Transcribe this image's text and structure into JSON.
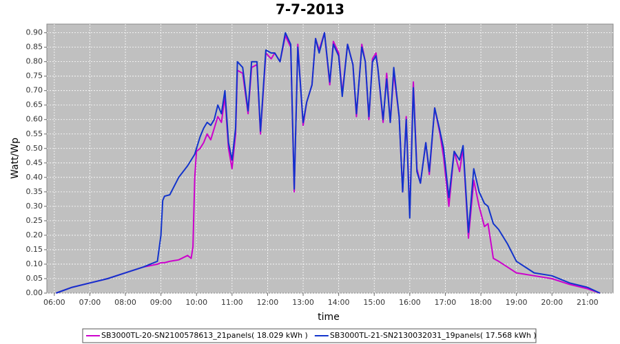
{
  "chart_data": {
    "type": "line",
    "title": "7-7-2013",
    "x_label": "time",
    "y_label": "Watt/Wp",
    "x": [
      6.05,
      6.5,
      7.0,
      7.5,
      8.0,
      8.5,
      8.9,
      9.0,
      9.05,
      9.1,
      9.25,
      9.5,
      9.75,
      9.85,
      9.9,
      9.95,
      10.0,
      10.1,
      10.2,
      10.3,
      10.4,
      10.5,
      10.6,
      10.7,
      10.8,
      10.9,
      11.0,
      11.1,
      11.15,
      11.3,
      11.45,
      11.55,
      11.7,
      11.8,
      11.95,
      12.1,
      12.2,
      12.35,
      12.5,
      12.65,
      12.75,
      12.85,
      13.0,
      13.1,
      13.25,
      13.35,
      13.45,
      13.6,
      13.75,
      13.85,
      14.0,
      14.1,
      14.25,
      14.4,
      14.5,
      14.65,
      14.75,
      14.85,
      14.95,
      15.05,
      15.1,
      15.25,
      15.35,
      15.45,
      15.55,
      15.7,
      15.8,
      15.9,
      16.0,
      16.1,
      16.2,
      16.3,
      16.45,
      16.55,
      16.7,
      16.85,
      16.95,
      17.1,
      17.25,
      17.4,
      17.5,
      17.65,
      17.8,
      17.95,
      18.1,
      18.2,
      18.35,
      18.5,
      18.75,
      19.0,
      19.5,
      20.0,
      20.5,
      21.0,
      21.35
    ],
    "series": [
      {
        "name": "SB3000TL-20-SN2100578613_21panels( 18.029 kWh )",
        "color": "#cc00cc",
        "values": [
          0.0,
          0.02,
          0.035,
          0.05,
          0.07,
          0.09,
          0.1,
          0.105,
          0.105,
          0.105,
          0.11,
          0.115,
          0.13,
          0.12,
          0.16,
          0.4,
          0.49,
          0.5,
          0.52,
          0.55,
          0.53,
          0.57,
          0.61,
          0.59,
          0.68,
          0.5,
          0.43,
          0.55,
          0.77,
          0.76,
          0.62,
          0.78,
          0.79,
          0.55,
          0.83,
          0.81,
          0.83,
          0.8,
          0.89,
          0.85,
          0.35,
          0.86,
          0.58,
          0.66,
          0.72,
          0.88,
          0.84,
          0.9,
          0.72,
          0.87,
          0.83,
          0.69,
          0.86,
          0.79,
          0.61,
          0.86,
          0.8,
          0.6,
          0.81,
          0.83,
          0.78,
          0.59,
          0.76,
          0.59,
          0.76,
          0.61,
          0.35,
          0.61,
          0.27,
          0.73,
          0.43,
          0.38,
          0.52,
          0.41,
          0.64,
          0.55,
          0.47,
          0.3,
          0.49,
          0.42,
          0.5,
          0.19,
          0.39,
          0.3,
          0.23,
          0.24,
          0.12,
          0.11,
          0.09,
          0.07,
          0.06,
          0.05,
          0.03,
          0.015,
          0.0
        ]
      },
      {
        "name": "SB3000TL-21-SN2130032031_19panels( 17.568 kWh )",
        "color": "#1133cc",
        "values": [
          0.0,
          0.02,
          0.035,
          0.05,
          0.07,
          0.09,
          0.11,
          0.2,
          0.32,
          0.335,
          0.34,
          0.4,
          0.44,
          0.46,
          0.47,
          0.48,
          0.5,
          0.54,
          0.57,
          0.59,
          0.58,
          0.6,
          0.65,
          0.62,
          0.7,
          0.52,
          0.46,
          0.57,
          0.8,
          0.78,
          0.63,
          0.8,
          0.8,
          0.56,
          0.84,
          0.83,
          0.83,
          0.8,
          0.9,
          0.86,
          0.36,
          0.85,
          0.59,
          0.66,
          0.72,
          0.88,
          0.83,
          0.9,
          0.73,
          0.86,
          0.82,
          0.68,
          0.86,
          0.79,
          0.62,
          0.85,
          0.8,
          0.61,
          0.8,
          0.82,
          0.78,
          0.6,
          0.74,
          0.59,
          0.78,
          0.61,
          0.35,
          0.6,
          0.26,
          0.71,
          0.42,
          0.38,
          0.52,
          0.42,
          0.64,
          0.56,
          0.5,
          0.33,
          0.49,
          0.46,
          0.51,
          0.21,
          0.43,
          0.35,
          0.31,
          0.3,
          0.24,
          0.22,
          0.17,
          0.11,
          0.07,
          0.06,
          0.035,
          0.02,
          0.0
        ]
      }
    ],
    "xlim": [
      5.79,
      21.72
    ],
    "xticks": [
      {
        "value": 6,
        "label": "06:00"
      },
      {
        "value": 7,
        "label": "07:00"
      },
      {
        "value": 8,
        "label": "08:00"
      },
      {
        "value": 9,
        "label": "09:00"
      },
      {
        "value": 10,
        "label": "10:00"
      },
      {
        "value": 11,
        "label": "11:00"
      },
      {
        "value": 12,
        "label": "12:00"
      },
      {
        "value": 13,
        "label": "13:00"
      },
      {
        "value": 14,
        "label": "14:00"
      },
      {
        "value": 15,
        "label": "15:00"
      },
      {
        "value": 16,
        "label": "16:00"
      },
      {
        "value": 17,
        "label": "17:00"
      },
      {
        "value": 18,
        "label": "18:00"
      },
      {
        "value": 19,
        "label": "19:00"
      },
      {
        "value": 20,
        "label": "20:00"
      },
      {
        "value": 21,
        "label": "21:00"
      }
    ],
    "ylim": [
      0,
      0.93
    ],
    "yticks": [
      {
        "value": 0,
        "label": "0.00"
      },
      0.05,
      {
        "value": 0.1,
        "label": "0.10"
      },
      0.15,
      {
        "value": 0.2,
        "label": "0.20"
      },
      0.25,
      {
        "value": 0.3,
        "label": "0.30"
      },
      0.35,
      {
        "value": 0.4,
        "label": "0.40"
      },
      0.45,
      {
        "value": 0.5,
        "label": "0.50"
      },
      0.55,
      {
        "value": 0.6,
        "label": "0.60"
      },
      0.65,
      {
        "value": 0.7,
        "label": "0.70"
      },
      0.75,
      {
        "value": 0.8,
        "label": "0.80"
      },
      0.85,
      {
        "value": 0.9,
        "label": "0.90"
      }
    ],
    "grid": true
  }
}
